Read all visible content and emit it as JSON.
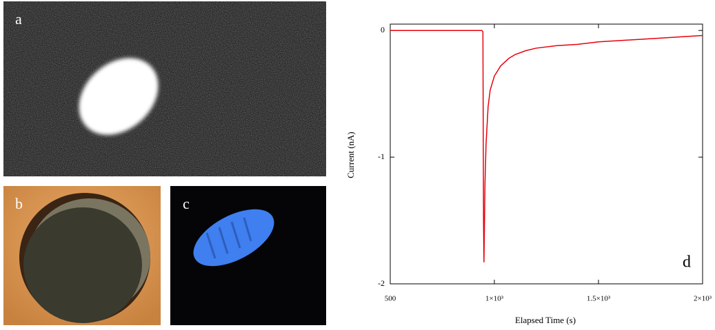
{
  "panel_labels": [
    "a",
    "b",
    "c"
  ],
  "chart_data": {
    "type": "line",
    "annotation": "d",
    "xlabel": "Elapsed Time (s)",
    "ylabel": "Current (nA)",
    "x": [
      500,
      600,
      700,
      800,
      900,
      940,
      945,
      948,
      950,
      955,
      960,
      970,
      980,
      1000,
      1030,
      1070,
      1100,
      1150,
      1200,
      1300,
      1400,
      1500,
      1600,
      1700,
      1800,
      1900,
      2000
    ],
    "values": [
      0,
      0,
      0,
      0,
      0,
      0,
      -0.01,
      -1.5,
      -1.83,
      -1.2,
      -0.9,
      -0.6,
      -0.47,
      -0.36,
      -0.28,
      -0.22,
      -0.19,
      -0.16,
      -0.14,
      -0.12,
      -0.11,
      -0.09,
      -0.08,
      -0.07,
      -0.06,
      -0.05,
      -0.04
    ],
    "color": "#e8000b",
    "xlim": [
      500,
      2000
    ],
    "ylim": [
      -2,
      0.05
    ],
    "xticks": [
      500,
      {
        "value": 1000,
        "label": "1×10³"
      },
      {
        "value": 1500,
        "label": "1.5×10³"
      },
      {
        "value": 2000,
        "label": "2×10³"
      }
    ],
    "yticks": [
      0,
      -1,
      -2
    ]
  }
}
